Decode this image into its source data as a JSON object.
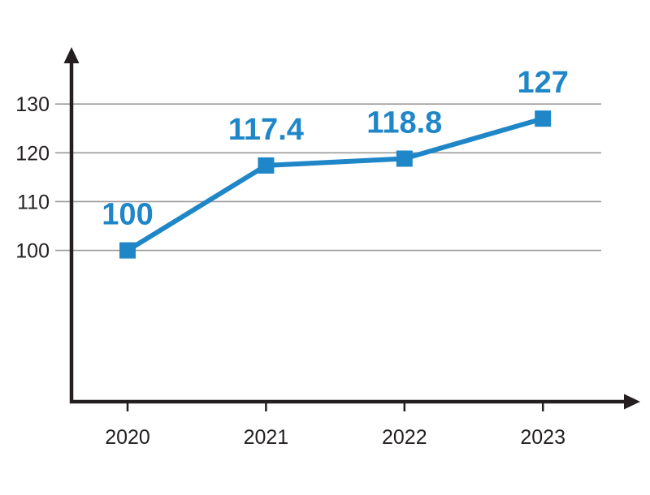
{
  "chart_data": {
    "type": "line",
    "categories": [
      "2020",
      "2021",
      "2022",
      "2023"
    ],
    "series": [
      {
        "values": [
          100,
          117.4,
          118.8,
          127
        ],
        "color": "#1f86c8"
      }
    ],
    "yticks": [
      100,
      110,
      120,
      130
    ],
    "ylim": [
      69,
      141
    ],
    "grid": true,
    "data_labels": true,
    "marker": "square",
    "axis_color": "#231f20",
    "grid_color": "#9a9a9a",
    "tick_label_color": "#231f20"
  }
}
